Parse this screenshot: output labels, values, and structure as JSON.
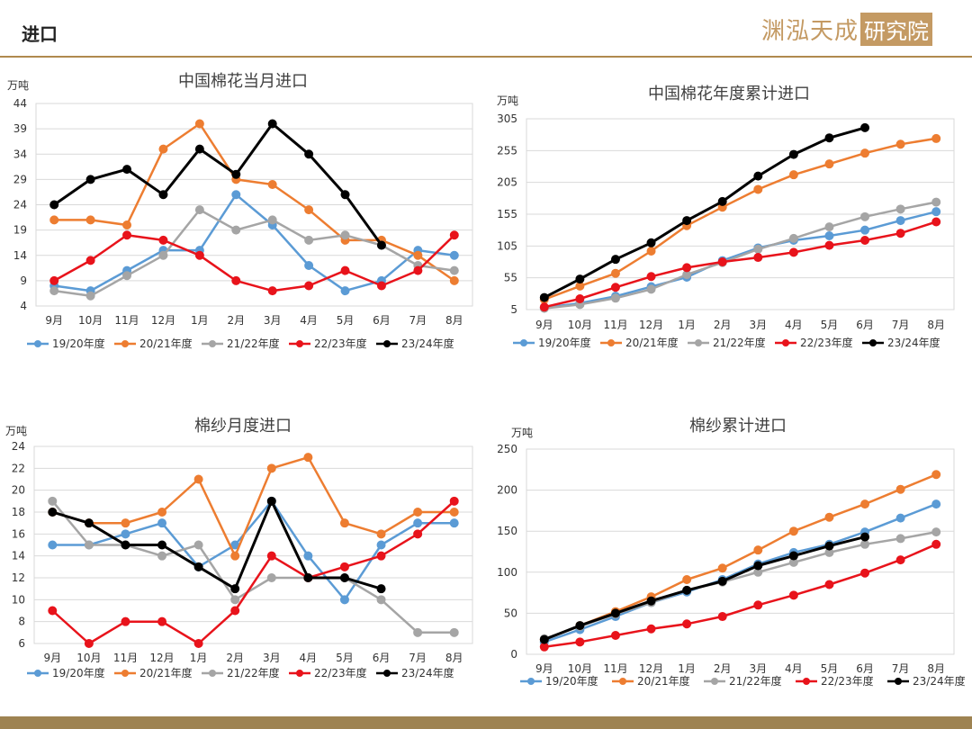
{
  "header": {
    "title": "进口",
    "brand_main": "渊泓天成",
    "brand_box": "研究院"
  },
  "chart_data": [
    {
      "type": "line",
      "title": "中国棉花当月进口",
      "ylabel": "万吨",
      "categories": [
        "9月",
        "10月",
        "11月",
        "12月",
        "1月",
        "2月",
        "3月",
        "4月",
        "5月",
        "6月",
        "7月",
        "8月"
      ],
      "yticks": [
        4,
        9,
        14,
        19,
        24,
        29,
        34,
        39,
        44
      ],
      "ylim": [
        4,
        44
      ],
      "grid": true,
      "legend": "bottom",
      "series": [
        {
          "name": "19/20年度",
          "color": "#5b9bd5",
          "values": [
            8,
            7,
            11,
            15,
            15,
            26,
            20,
            12,
            7,
            9,
            15,
            14
          ]
        },
        {
          "name": "20/21年度",
          "color": "#ed7d31",
          "values": [
            21,
            21,
            20,
            35,
            40,
            29,
            28,
            23,
            17,
            17,
            14,
            9
          ]
        },
        {
          "name": "21/22年度",
          "color": "#a5a5a5",
          "values": [
            7,
            6,
            10,
            14,
            23,
            19,
            21,
            17,
            18,
            16,
            12,
            11
          ]
        },
        {
          "name": "22/23年度",
          "color": "#e8131b",
          "values": [
            9,
            13,
            18,
            17,
            14,
            9,
            7,
            8,
            11,
            8,
            11,
            18
          ]
        },
        {
          "name": "23/24年度",
          "color": "#000000",
          "values": [
            24,
            29,
            31,
            26,
            35,
            30,
            40,
            34,
            26,
            16,
            null,
            null
          ]
        }
      ]
    },
    {
      "type": "line",
      "title": "中国棉花年度累计进口",
      "ylabel": "万吨",
      "categories": [
        "9月",
        "10月",
        "11月",
        "12月",
        "1月",
        "2月",
        "3月",
        "4月",
        "5月",
        "6月",
        "7月",
        "8月"
      ],
      "yticks": [
        5,
        55,
        105,
        155,
        205,
        255,
        305
      ],
      "ylim": [
        5,
        305
      ],
      "grid": true,
      "legend": "bottom",
      "series": [
        {
          "name": "19/20年度",
          "color": "#5b9bd5",
          "values": [
            8,
            15,
            26,
            41,
            56,
            82,
            102,
            114,
            121,
            130,
            145,
            159
          ]
        },
        {
          "name": "20/21年度",
          "color": "#ed7d31",
          "values": [
            21,
            42,
            62,
            97,
            137,
            166,
            194,
            217,
            234,
            251,
            265,
            274
          ]
        },
        {
          "name": "21/22年度",
          "color": "#a5a5a5",
          "values": [
            7,
            13,
            23,
            37,
            60,
            79,
            100,
            117,
            135,
            151,
            163,
            174
          ]
        },
        {
          "name": "22/23年度",
          "color": "#e8131b",
          "values": [
            9,
            22,
            40,
            57,
            71,
            80,
            87,
            95,
            106,
            114,
            125,
            143
          ]
        },
        {
          "name": "23/24年度",
          "color": "#000000",
          "values": [
            24,
            53,
            84,
            110,
            145,
            175,
            215,
            249,
            275,
            291,
            null,
            null
          ]
        }
      ]
    },
    {
      "type": "line",
      "title": "棉纱月度进口",
      "ylabel": "万吨",
      "categories": [
        "9月",
        "10月",
        "11月",
        "12月",
        "1月",
        "2月",
        "3月",
        "4月",
        "5月",
        "6月",
        "7月",
        "8月"
      ],
      "yticks": [
        6,
        8,
        10,
        12,
        14,
        16,
        18,
        20,
        22,
        24
      ],
      "ylim": [
        6,
        24
      ],
      "grid": true,
      "legend": "bottom",
      "series": [
        {
          "name": "19/20年度",
          "color": "#5b9bd5",
          "values": [
            15,
            15,
            16,
            17,
            13,
            15,
            19,
            14,
            10,
            15,
            17,
            17
          ]
        },
        {
          "name": "20/21年度",
          "color": "#ed7d31",
          "values": [
            18,
            17,
            17,
            18,
            21,
            14,
            22,
            23,
            17,
            16,
            18,
            18
          ]
        },
        {
          "name": "21/22年度",
          "color": "#a5a5a5",
          "values": [
            19,
            15,
            15,
            14,
            15,
            10,
            12,
            12,
            12,
            10,
            7,
            7
          ]
        },
        {
          "name": "22/23年度",
          "color": "#e8131b",
          "values": [
            9,
            6,
            8,
            8,
            6,
            9,
            14,
            12,
            13,
            14,
            16,
            19
          ]
        },
        {
          "name": "23/24年度",
          "color": "#000000",
          "values": [
            18,
            17,
            15,
            15,
            13,
            11,
            19,
            12,
            12,
            11,
            null,
            null
          ]
        }
      ]
    },
    {
      "type": "line",
      "title": "棉纱累计进口",
      "ylabel": "万吨",
      "categories": [
        "9月",
        "10月",
        "11月",
        "12月",
        "1月",
        "2月",
        "3月",
        "4月",
        "5月",
        "6月",
        "7月",
        "8月"
      ],
      "yticks": [
        0,
        50,
        100,
        150,
        200,
        250
      ],
      "ylim": [
        0,
        250
      ],
      "grid": true,
      "legend": "bottom",
      "series": [
        {
          "name": "19/20年度",
          "color": "#5b9bd5",
          "values": [
            15,
            30,
            46,
            63,
            76,
            91,
            110,
            124,
            134,
            149,
            166,
            183
          ]
        },
        {
          "name": "20/21年度",
          "color": "#ed7d31",
          "values": [
            18,
            35,
            52,
            70,
            91,
            105,
            127,
            150,
            167,
            183,
            201,
            219
          ]
        },
        {
          "name": "21/22年度",
          "color": "#a5a5a5",
          "values": [
            19,
            34,
            49,
            63,
            78,
            88,
            100,
            112,
            124,
            134,
            141,
            149
          ]
        },
        {
          "name": "22/23年度",
          "color": "#e8131b",
          "values": [
            9,
            15,
            23,
            31,
            37,
            46,
            60,
            72,
            85,
            99,
            115,
            134
          ]
        },
        {
          "name": "23/24年度",
          "color": "#000000",
          "values": [
            18,
            35,
            50,
            65,
            78,
            89,
            108,
            120,
            132,
            143,
            null,
            null
          ]
        }
      ]
    }
  ]
}
